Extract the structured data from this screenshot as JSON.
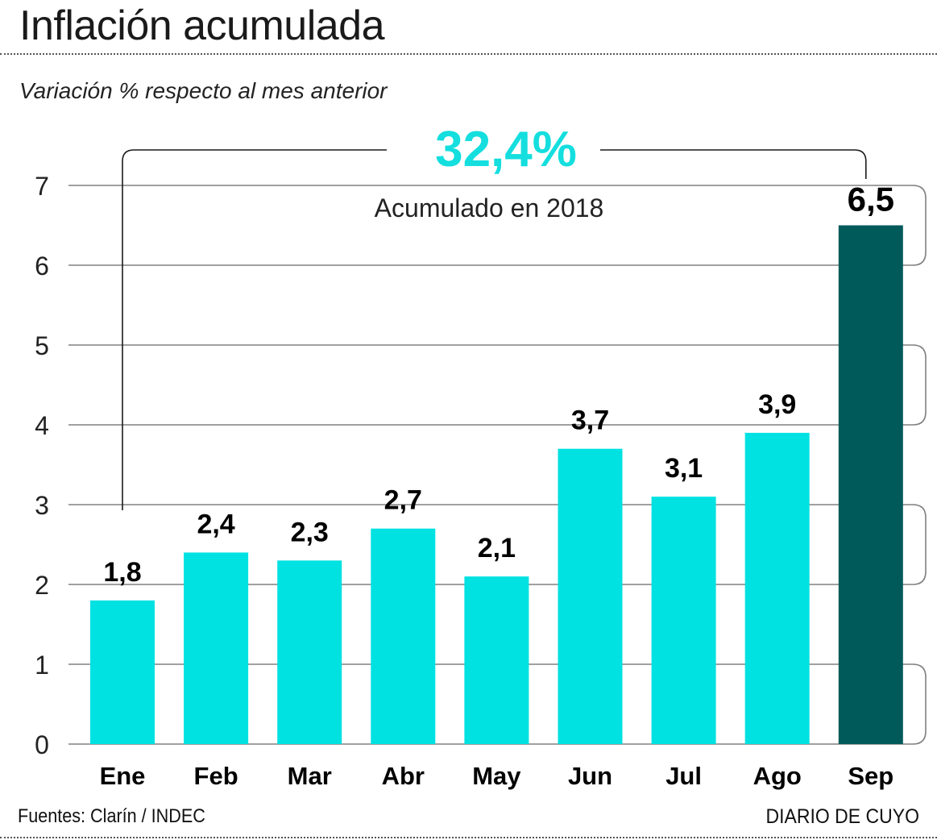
{
  "header": {
    "title": "Inflación acumulada",
    "subtitle": "Variación % respecto al mes anterior"
  },
  "annotation": {
    "total": "32,4%",
    "label": "Acumulado en 2018"
  },
  "footer": {
    "source": "Fuentes: Clarín / INDEC",
    "brand": "DIARIO DE CUYO"
  },
  "colors": {
    "bar": "#00e1e1",
    "highlight_bar": "#005a5a",
    "annotation": "#14dede",
    "grid": "#808080"
  },
  "chart_data": {
    "type": "bar",
    "title": "Inflación acumulada",
    "subtitle": "Variación % respecto al mes anterior",
    "xlabel": "",
    "ylabel": "",
    "categories": [
      "Ene",
      "Feb",
      "Mar",
      "Abr",
      "May",
      "Jun",
      "Jul",
      "Ago",
      "Sep"
    ],
    "values": [
      1.8,
      2.4,
      2.3,
      2.7,
      2.1,
      3.7,
      3.1,
      3.9,
      6.5
    ],
    "value_labels": [
      "1,8",
      "2,4",
      "2,3",
      "2,7",
      "2,1",
      "3,7",
      "3,1",
      "3,9",
      "6,5"
    ],
    "highlight_index": 8,
    "ylim": [
      0,
      7
    ],
    "yticks": [
      0,
      1,
      2,
      3,
      4,
      5,
      6,
      7
    ],
    "ytick_labels": [
      "0",
      "1",
      "2",
      "3",
      "4",
      "5",
      "6",
      "7"
    ],
    "grid": true,
    "legend": "none"
  }
}
